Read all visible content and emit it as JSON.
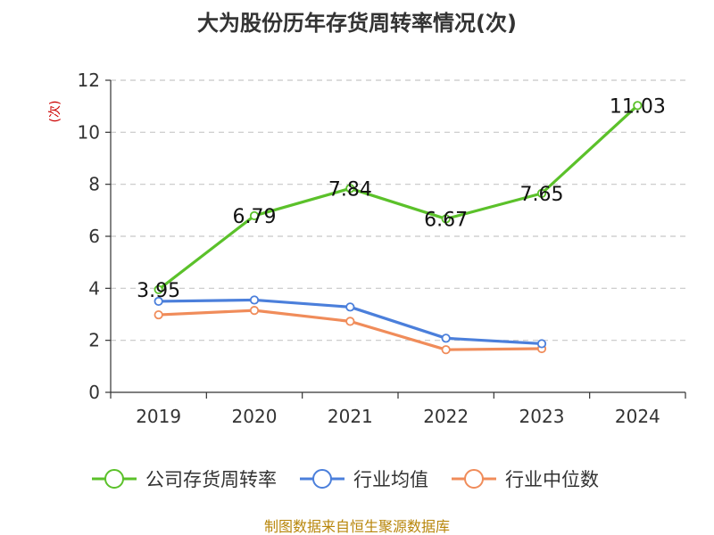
{
  "chart_data": {
    "type": "line",
    "title": "大为股份历年存货周转率情况(次)",
    "ylabel": "(次)",
    "xlabel": "",
    "categories": [
      "2019",
      "2020",
      "2021",
      "2022",
      "2023",
      "2024"
    ],
    "ylim": [
      0,
      12
    ],
    "yticks": [
      0,
      2,
      4,
      6,
      8,
      10,
      12
    ],
    "grid": true,
    "legend_position": "bottom",
    "series": [
      {
        "name": "公司存货周转率",
        "color": "#5bc12a",
        "values": [
          3.95,
          6.79,
          7.84,
          6.67,
          7.65,
          11.03
        ],
        "labels": [
          "3.95",
          "6.79",
          "7.84",
          "6.67",
          "7.65",
          "11.03"
        ]
      },
      {
        "name": "行业均值",
        "color": "#4b7fdb",
        "values": [
          3.5,
          3.55,
          3.28,
          2.08,
          1.87,
          null
        ]
      },
      {
        "name": "行业中位数",
        "color": "#f08c5a",
        "values": [
          2.98,
          3.15,
          2.73,
          1.64,
          1.68,
          null
        ]
      }
    ],
    "source": "制图数据来自恒生聚源数据库"
  }
}
